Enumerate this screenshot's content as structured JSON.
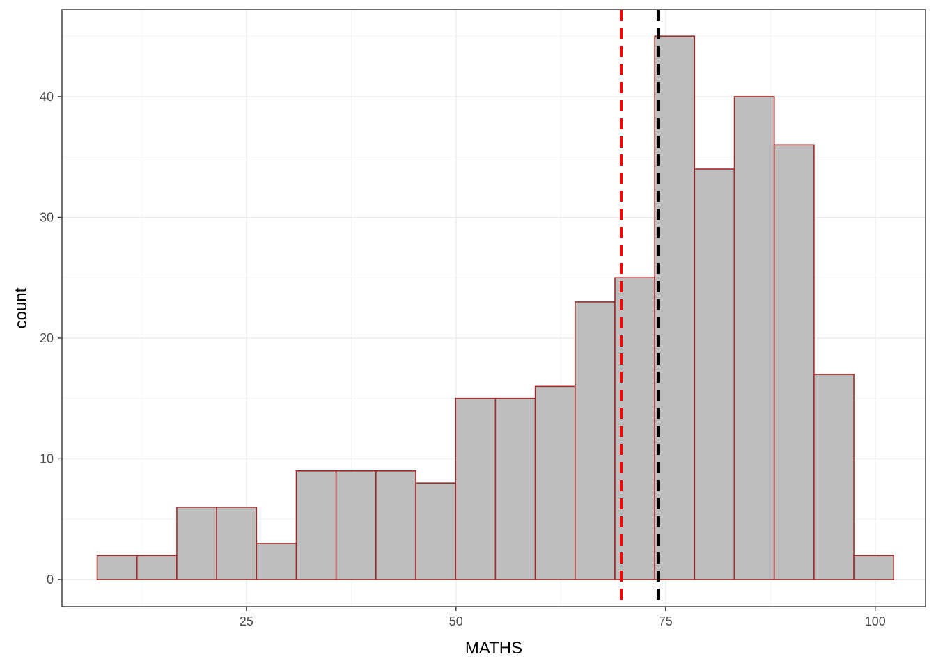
{
  "chart_data": {
    "type": "bar",
    "subtype": "histogram",
    "xlabel": "MATHS",
    "ylabel": "count",
    "xlim": [
      3.0,
      106.0
    ],
    "ylim": [
      -2.25,
      47.2
    ],
    "x_ticks": [
      25,
      50,
      75,
      100
    ],
    "y_ticks": [
      0,
      10,
      20,
      30,
      40
    ],
    "grid": true,
    "bins": [
      {
        "x0": 7.2,
        "x1": 11.95,
        "count": 2
      },
      {
        "x0": 11.95,
        "x1": 16.7,
        "count": 2
      },
      {
        "x0": 16.7,
        "x1": 21.45,
        "count": 6
      },
      {
        "x0": 21.45,
        "x1": 26.2,
        "count": 6
      },
      {
        "x0": 26.2,
        "x1": 30.95,
        "count": 3
      },
      {
        "x0": 30.95,
        "x1": 35.7,
        "count": 9
      },
      {
        "x0": 35.7,
        "x1": 40.45,
        "count": 9
      },
      {
        "x0": 40.45,
        "x1": 45.2,
        "count": 9
      },
      {
        "x0": 45.2,
        "x1": 49.95,
        "count": 8
      },
      {
        "x0": 49.95,
        "x1": 54.7,
        "count": 15
      },
      {
        "x0": 54.7,
        "x1": 59.45,
        "count": 15
      },
      {
        "x0": 59.45,
        "x1": 64.2,
        "count": 16
      },
      {
        "x0": 64.2,
        "x1": 68.95,
        "count": 23
      },
      {
        "x0": 68.95,
        "x1": 73.7,
        "count": 25
      },
      {
        "x0": 73.7,
        "x1": 78.45,
        "count": 45
      },
      {
        "x0": 78.45,
        "x1": 83.2,
        "count": 34
      },
      {
        "x0": 83.2,
        "x1": 87.95,
        "count": 40
      },
      {
        "x0": 87.95,
        "x1": 92.7,
        "count": 36
      },
      {
        "x0": 92.7,
        "x1": 97.45,
        "count": 17
      },
      {
        "x0": 97.45,
        "x1": 102.2,
        "count": 2
      }
    ],
    "reference_lines": [
      {
        "x": 69.7,
        "color": "#ff0000",
        "style": "dashed"
      },
      {
        "x": 74.1,
        "color": "#000000",
        "style": "dashed"
      }
    ],
    "colors": {
      "bar_fill": "#bebebe",
      "bar_stroke": "#a52a2a"
    }
  }
}
